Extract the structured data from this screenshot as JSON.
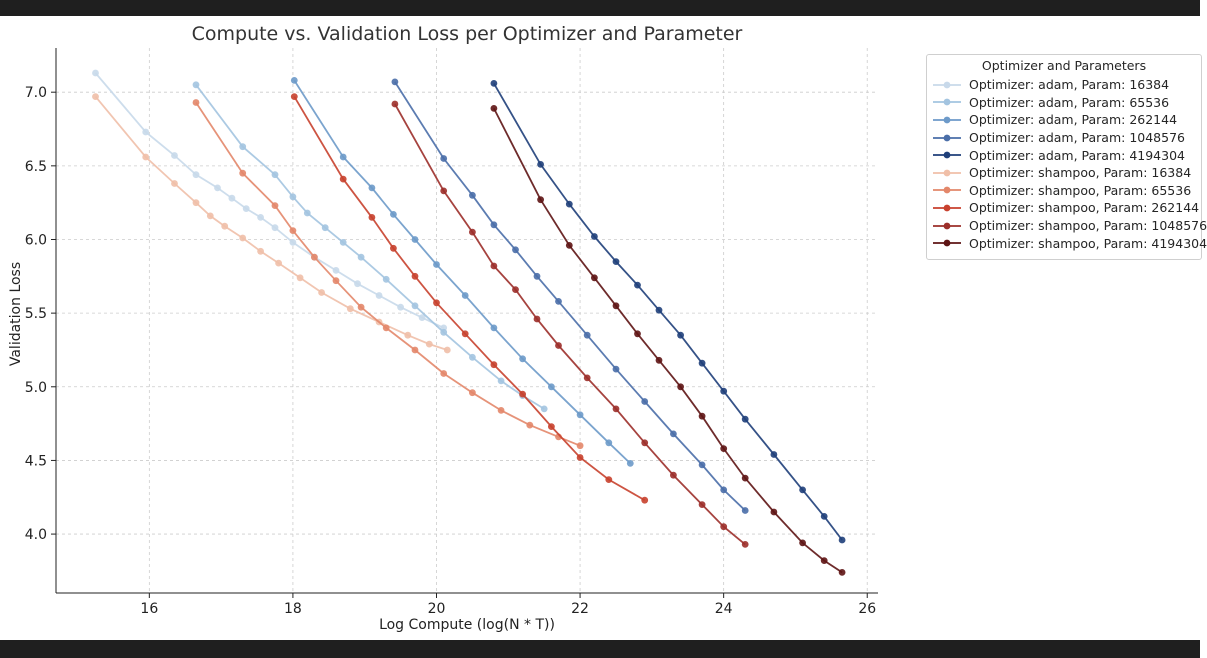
{
  "chart_data": {
    "type": "line",
    "title": "Compute vs. Validation Loss per Optimizer and Parameter",
    "xlabel": "Log Compute (log(N * T))",
    "ylabel": "Validation Loss",
    "xlim": [
      14.7,
      26.15
    ],
    "ylim": [
      3.6,
      7.3
    ],
    "xticks": [
      16,
      18,
      20,
      22,
      24,
      26
    ],
    "yticks": [
      4.0,
      4.5,
      5.0,
      5.5,
      6.0,
      6.5,
      7.0
    ],
    "grid": true,
    "legend_title": "Optimizer and Parameters",
    "legend_position": "outside-top-right",
    "series": [
      {
        "name": "Optimizer: adam, Param: 16384",
        "color": "#c8d9ea",
        "x": [
          15.25,
          15.95,
          16.35,
          16.65,
          16.95,
          17.15,
          17.35,
          17.55,
          17.75,
          18.0,
          18.3,
          18.6,
          18.9,
          19.2,
          19.5,
          19.8,
          20.1
        ],
        "y": [
          7.13,
          6.73,
          6.57,
          6.44,
          6.35,
          6.28,
          6.21,
          6.15,
          6.08,
          5.98,
          5.88,
          5.79,
          5.7,
          5.62,
          5.54,
          5.47,
          5.4
        ]
      },
      {
        "name": "Optimizer: adam, Param: 65536",
        "color": "#a3c4e0",
        "x": [
          16.65,
          17.3,
          17.75,
          18.0,
          18.2,
          18.45,
          18.7,
          18.95,
          19.3,
          19.7,
          20.1,
          20.5,
          20.9,
          21.2,
          21.5
        ],
        "y": [
          7.05,
          6.63,
          6.44,
          6.29,
          6.18,
          6.08,
          5.98,
          5.88,
          5.73,
          5.55,
          5.37,
          5.2,
          5.04,
          4.94,
          4.85
        ]
      },
      {
        "name": "Optimizer: adam, Param: 262144",
        "color": "#6d9ac9",
        "x": [
          18.02,
          18.7,
          19.1,
          19.4,
          19.7,
          20.0,
          20.4,
          20.8,
          21.2,
          21.6,
          22.0,
          22.4,
          22.7
        ],
        "y": [
          7.08,
          6.56,
          6.35,
          6.17,
          6.0,
          5.83,
          5.62,
          5.4,
          5.19,
          5.0,
          4.81,
          4.62,
          4.48
        ]
      },
      {
        "name": "Optimizer: adam, Param: 1048576",
        "color": "#4a6ea8",
        "x": [
          19.42,
          20.1,
          20.5,
          20.8,
          21.1,
          21.4,
          21.7,
          22.1,
          22.5,
          22.9,
          23.3,
          23.7,
          24.0,
          24.3
        ],
        "y": [
          7.07,
          6.55,
          6.3,
          6.1,
          5.93,
          5.75,
          5.58,
          5.35,
          5.12,
          4.9,
          4.68,
          4.47,
          4.3,
          4.16
        ]
      },
      {
        "name": "Optimizer: adam, Param: 4194304",
        "color": "#1f3f7a",
        "x": [
          20.8,
          21.45,
          21.85,
          22.2,
          22.5,
          22.8,
          23.1,
          23.4,
          23.7,
          24.0,
          24.3,
          24.7,
          25.1,
          25.4,
          25.65
        ],
        "y": [
          7.06,
          6.51,
          6.24,
          6.02,
          5.85,
          5.69,
          5.52,
          5.35,
          5.16,
          4.97,
          4.78,
          4.54,
          4.3,
          4.12,
          3.96
        ]
      },
      {
        "name": "Optimizer: shampoo, Param: 16384",
        "color": "#f0bfa8",
        "x": [
          15.25,
          15.95,
          16.35,
          16.65,
          16.85,
          17.05,
          17.3,
          17.55,
          17.8,
          18.1,
          18.4,
          18.8,
          19.2,
          19.6,
          19.9,
          20.15
        ],
        "y": [
          6.97,
          6.56,
          6.38,
          6.25,
          6.16,
          6.09,
          6.01,
          5.92,
          5.84,
          5.74,
          5.64,
          5.53,
          5.44,
          5.35,
          5.29,
          5.25
        ]
      },
      {
        "name": "Optimizer: shampoo, Param: 65536",
        "color": "#e3876a",
        "x": [
          16.65,
          17.3,
          17.75,
          18.0,
          18.3,
          18.6,
          18.95,
          19.3,
          19.7,
          20.1,
          20.5,
          20.9,
          21.3,
          21.7,
          22.0
        ],
        "y": [
          6.93,
          6.45,
          6.23,
          6.06,
          5.88,
          5.72,
          5.54,
          5.4,
          5.25,
          5.09,
          4.96,
          4.84,
          4.74,
          4.66,
          4.6
        ]
      },
      {
        "name": "Optimizer: shampoo, Param: 262144",
        "color": "#c8412e",
        "x": [
          18.02,
          18.7,
          19.1,
          19.4,
          19.7,
          20.0,
          20.4,
          20.8,
          21.2,
          21.6,
          22.0,
          22.4,
          22.9
        ],
        "y": [
          6.97,
          6.41,
          6.15,
          5.94,
          5.75,
          5.57,
          5.36,
          5.15,
          4.95,
          4.73,
          4.52,
          4.37,
          4.23
        ]
      },
      {
        "name": "Optimizer: shampoo, Param: 1048576",
        "color": "#9c2f2a",
        "x": [
          19.42,
          20.1,
          20.5,
          20.8,
          21.1,
          21.4,
          21.7,
          22.1,
          22.5,
          22.9,
          23.3,
          23.7,
          24.0,
          24.3
        ],
        "y": [
          6.92,
          6.33,
          6.05,
          5.82,
          5.66,
          5.46,
          5.28,
          5.06,
          4.85,
          4.62,
          4.4,
          4.2,
          4.05,
          3.93
        ]
      },
      {
        "name": "Optimizer: shampoo, Param: 4194304",
        "color": "#5e1414",
        "x": [
          20.8,
          21.45,
          21.85,
          22.2,
          22.5,
          22.8,
          23.1,
          23.4,
          23.7,
          24.0,
          24.3,
          24.7,
          25.1,
          25.4,
          25.65
        ],
        "y": [
          6.89,
          6.27,
          5.96,
          5.74,
          5.55,
          5.36,
          5.18,
          5.0,
          4.8,
          4.58,
          4.38,
          4.15,
          3.94,
          3.82,
          3.74
        ]
      }
    ]
  }
}
